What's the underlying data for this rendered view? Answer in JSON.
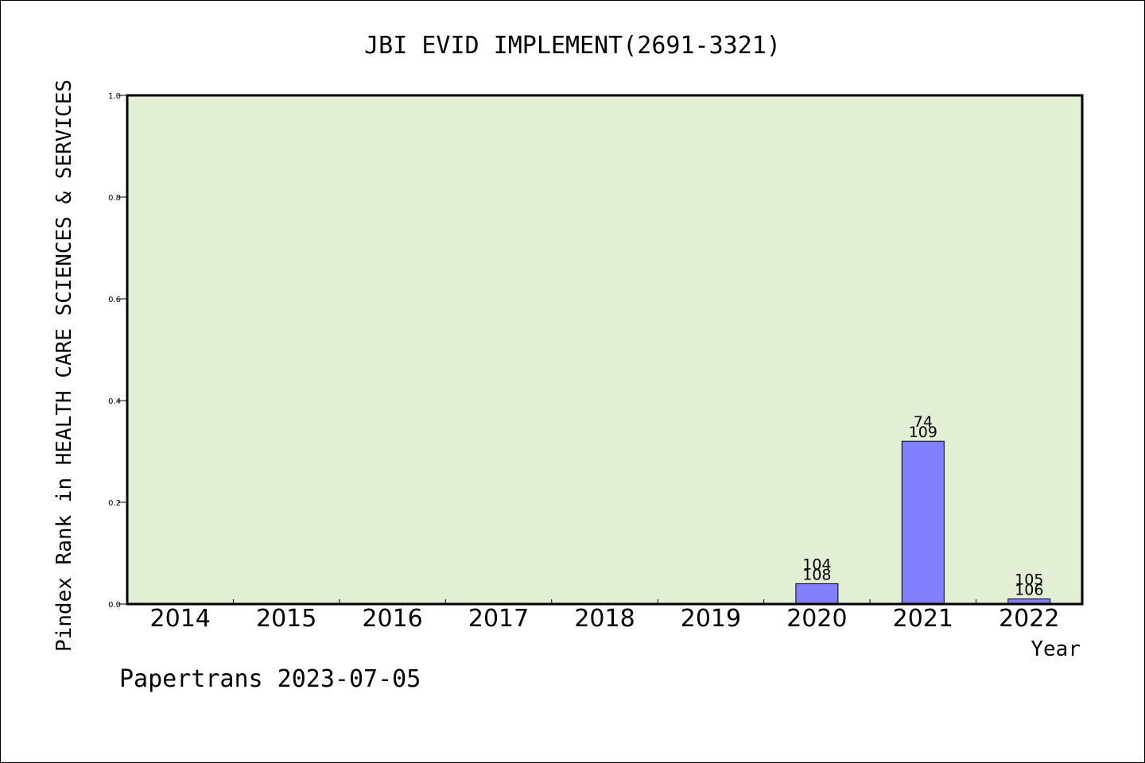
{
  "chart_data": {
    "type": "bar",
    "title": "JBI EVID IMPLEMENT(2691-3321)",
    "xlabel": "Year",
    "ylabel": "Pindex Rank in HEALTH CARE SCIENCES & SERVICES",
    "footer": "Papertrans 2023-07-05",
    "categories": [
      "2014",
      "2015",
      "2016",
      "2017",
      "2018",
      "2019",
      "2020",
      "2021",
      "2022"
    ],
    "values": [
      0,
      0,
      0,
      0,
      0,
      0,
      0.04,
      0.32,
      0.01
    ],
    "labels_top": [
      "",
      "",
      "",
      "",
      "",
      "",
      "104",
      "74",
      "105"
    ],
    "labels_bottom": [
      "",
      "",
      "",
      "",
      "",
      "",
      "108",
      "109",
      "106"
    ],
    "yticks": [
      "0.0",
      "0.2",
      "0.4",
      "0.6",
      "0.8",
      "1.0"
    ],
    "ylim": [
      0,
      1
    ],
    "grid": false,
    "colors": {
      "plot_bg": "#e2efd5",
      "bar": "#8080ff",
      "bar_edge": "#000000"
    }
  }
}
